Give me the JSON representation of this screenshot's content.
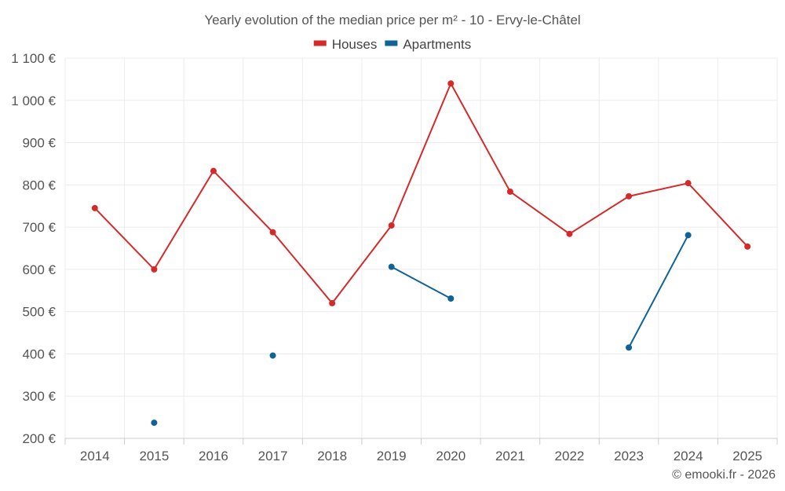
{
  "chart_data": {
    "type": "line",
    "title": "Yearly evolution of the median price per m² - 10 - Ervy-le-Châtel",
    "categories": [
      "2014",
      "2015",
      "2016",
      "2017",
      "2018",
      "2019",
      "2020",
      "2021",
      "2022",
      "2023",
      "2024",
      "2025"
    ],
    "ylim": [
      200,
      1100
    ],
    "yticks": [
      200,
      300,
      400,
      500,
      600,
      700,
      800,
      900,
      1000,
      1100
    ],
    "ytick_labels": [
      "200 €",
      "300 €",
      "400 €",
      "500 €",
      "600 €",
      "700 €",
      "800 €",
      "900 €",
      "1 000 €",
      "1 100 €"
    ],
    "series": [
      {
        "name": "Houses",
        "color": "#d42a2a",
        "values": [
          745,
          600,
          833,
          688,
          520,
          704,
          1040,
          784,
          684,
          773,
          804,
          654
        ]
      },
      {
        "name": "Apartments",
        "color": "#0e6399",
        "values": [
          null,
          237,
          null,
          396,
          null,
          606,
          531,
          null,
          null,
          415,
          681,
          null
        ]
      }
    ],
    "legend_position": "top-center",
    "grid": true,
    "credit": "© emooki.fr - 2026"
  }
}
